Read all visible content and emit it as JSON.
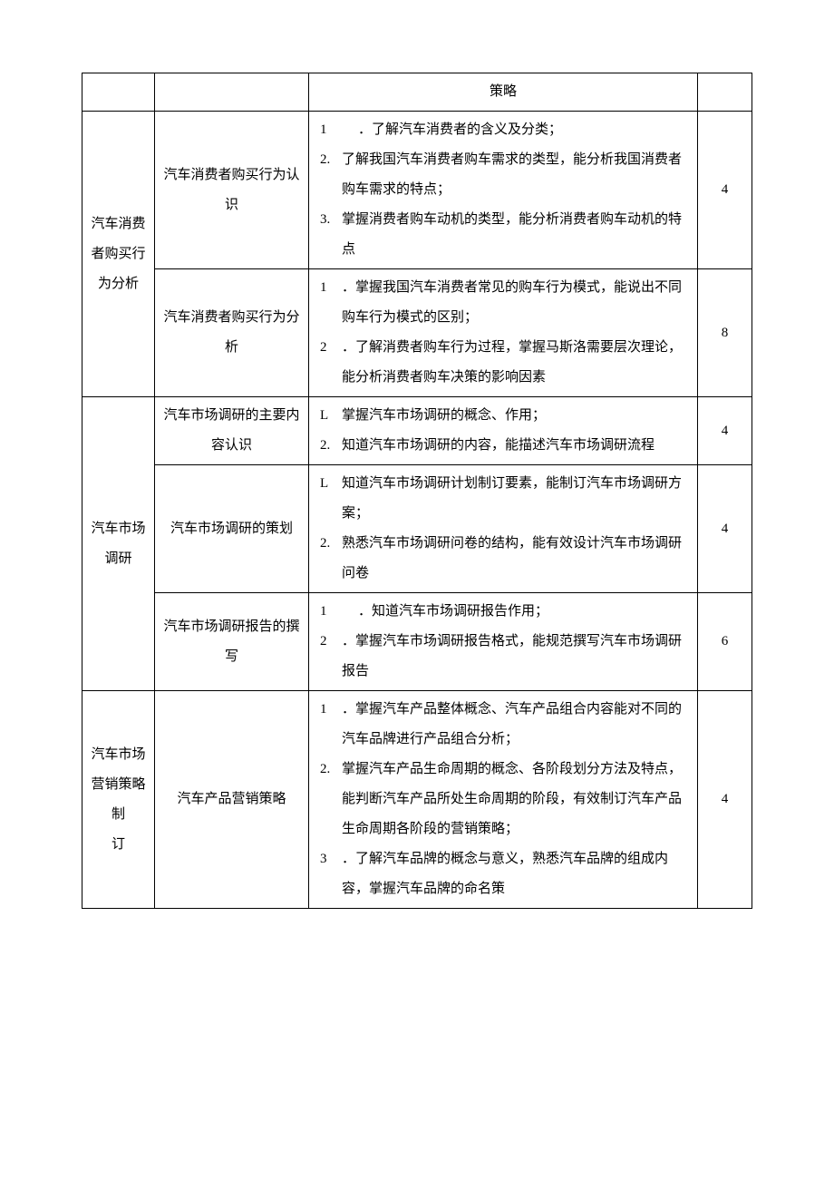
{
  "columns": {
    "c1_width": 80,
    "c2_width": 170,
    "c4_width": 60
  },
  "orphan_row": {
    "desc": "策略"
  },
  "sections": [
    {
      "name": "汽车消费者购买行为分析",
      "rows": [
        {
          "sub": "汽车消费者购买行为认识",
          "hours": "4",
          "items": [
            {
              "n": "1",
              "wide": true,
              "t": "．了解汽车消费者的含义及分类；"
            },
            {
              "n": "2.",
              "t": "了解我国汽车消费者购车需求的类型，能分析我国消费者购车需求的特点；"
            },
            {
              "n": "3.",
              "t": "掌握消费者购车动机的类型，能分析消费者购车动机的特点"
            }
          ]
        },
        {
          "sub": "汽车消费者购买行为分析",
          "hours": "8",
          "items": [
            {
              "n": "1",
              "t": "．掌握我国汽车消费者常见的购车行为模式，能说出不同购车行为模式的区别；"
            },
            {
              "n": "2",
              "t": "．了解消费者购车行为过程，掌握马斯洛需要层次理论，能分析消费者购车决策的影响因素"
            }
          ]
        }
      ]
    },
    {
      "name": "汽车市场调研",
      "rows": [
        {
          "sub": "汽车市场调研的主要内容认识",
          "hours": "4",
          "items": [
            {
              "n": "L",
              "t": "掌握汽车市场调研的概念、作用；"
            },
            {
              "n": "2.",
              "t": "知道汽车市场调研的内容，能描述汽车市场调研流程"
            }
          ]
        },
        {
          "sub": "汽车市场调研的策划",
          "hours": "4",
          "items": [
            {
              "n": "L",
              "t": "知道汽车市场调研计划制订要素，能制订汽车市场调研方案；"
            },
            {
              "n": "2.",
              "t": "熟悉汽车市场调研问卷的结构，能有效设计汽车市场调研问卷"
            }
          ]
        },
        {
          "sub": "汽车市场调研报告的撰写",
          "hours": "6",
          "items": [
            {
              "n": "1",
              "wide": true,
              "t": "．知道汽车市场调研报告作用；"
            },
            {
              "n": "2",
              "t": "．掌握汽车市场调研报告格式，能规范撰写汽车市场调研报告"
            }
          ]
        }
      ]
    },
    {
      "name": "汽车市场营销策略制订",
      "name_lines": [
        "汽车市场",
        "营销策略",
        "制",
        "订"
      ],
      "rows": [
        {
          "sub": "汽车产品营销策略",
          "hours": "4",
          "items": [
            {
              "n": "1",
              "t": "．掌握汽车产品整体概念、汽车产品组合内容能对不同的汽车品牌进行产品组合分析；"
            },
            {
              "n": "2.",
              "t": "掌握汽车产品生命周期的概念、各阶段划分方法及特点，能判断汽车产品所处生命周期的阶段，有效制订汽车产品生命周期各阶段的营销策略；"
            },
            {
              "n": "3",
              "t": "．了解汽车品牌的概念与意义，熟悉汽车品牌的组成内容，掌握汽车品牌的命名策"
            }
          ]
        }
      ]
    }
  ]
}
